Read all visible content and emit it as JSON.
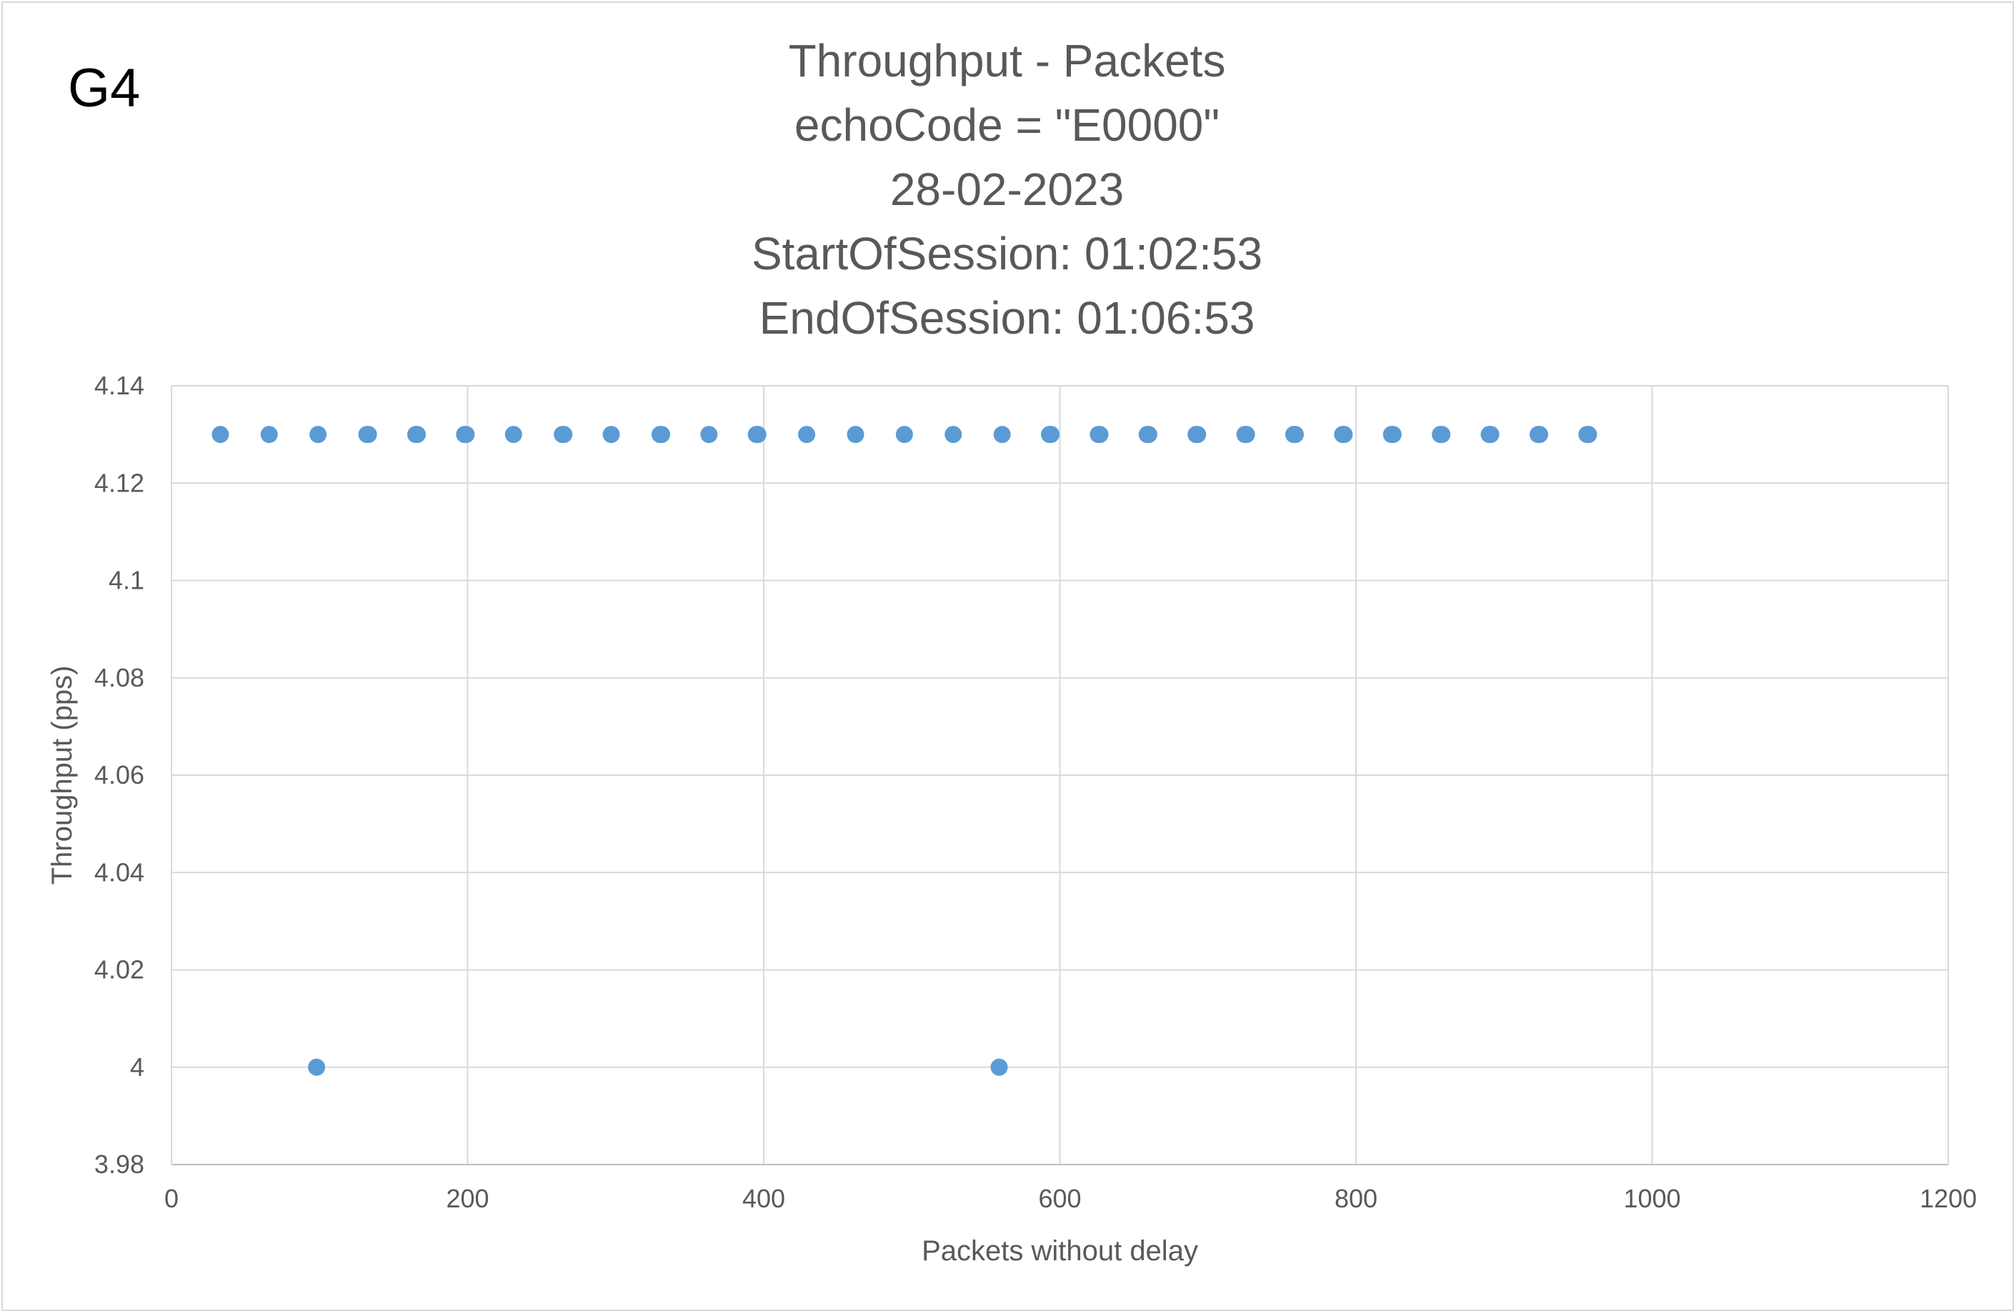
{
  "panel_label": "G4",
  "chart_data": {
    "type": "scatter",
    "title_lines": [
      "Throughput - Packets",
      "echoCode = \"E0000\"",
      "28-02-2023",
      "StartOfSession: 01:02:53",
      "EndOfSession: 01:06:53"
    ],
    "xlabel": "Packets without delay",
    "ylabel": "Throughput (pps)",
    "xlim": [
      0,
      1200
    ],
    "ylim": [
      3.98,
      4.14
    ],
    "x_ticks": [
      0,
      200,
      400,
      600,
      800,
      1000,
      1200
    ],
    "x_tick_labels": [
      "0",
      "200",
      "400",
      "600",
      "800",
      "1000",
      "1200"
    ],
    "y_ticks": [
      3.98,
      4.0,
      4.02,
      4.04,
      4.06,
      4.08,
      4.1,
      4.12,
      4.14
    ],
    "y_tick_labels": [
      "3.98",
      "4",
      "4.02",
      "4.04",
      "4.06",
      "4.08",
      "4.1",
      "4.12",
      "4.14"
    ],
    "grid": true,
    "legend": "none",
    "marker_color": "#5b9bd5",
    "series": [
      {
        "points": [
          [
            33,
            4.13
          ],
          [
            66,
            4.13
          ],
          [
            99,
            4.13
          ],
          [
            132,
            4.13
          ],
          [
            133,
            4.13
          ],
          [
            165,
            4.13
          ],
          [
            166,
            4.13
          ],
          [
            198,
            4.13
          ],
          [
            199,
            4.13
          ],
          [
            231,
            4.13
          ],
          [
            264,
            4.13
          ],
          [
            265,
            4.13
          ],
          [
            297,
            4.13
          ],
          [
            330,
            4.13
          ],
          [
            331,
            4.13
          ],
          [
            363,
            4.13
          ],
          [
            395,
            4.13
          ],
          [
            396,
            4.13
          ],
          [
            429,
            4.13
          ],
          [
            462,
            4.13
          ],
          [
            495,
            4.13
          ],
          [
            528,
            4.13
          ],
          [
            561,
            4.13
          ],
          [
            593,
            4.13
          ],
          [
            594,
            4.13
          ],
          [
            626,
            4.13
          ],
          [
            627,
            4.13
          ],
          [
            659,
            4.13
          ],
          [
            660,
            4.13
          ],
          [
            692,
            4.13
          ],
          [
            693,
            4.13
          ],
          [
            725,
            4.13
          ],
          [
            726,
            4.13
          ],
          [
            758,
            4.13
          ],
          [
            759,
            4.13
          ],
          [
            791,
            4.13
          ],
          [
            792,
            4.13
          ],
          [
            824,
            4.13
          ],
          [
            825,
            4.13
          ],
          [
            857,
            4.13
          ],
          [
            858,
            4.13
          ],
          [
            890,
            4.13
          ],
          [
            891,
            4.13
          ],
          [
            923,
            4.13
          ],
          [
            924,
            4.13
          ],
          [
            956,
            4.13
          ],
          [
            957,
            4.13
          ],
          [
            98,
            4.0
          ],
          [
            559,
            4.0
          ]
        ]
      }
    ]
  }
}
